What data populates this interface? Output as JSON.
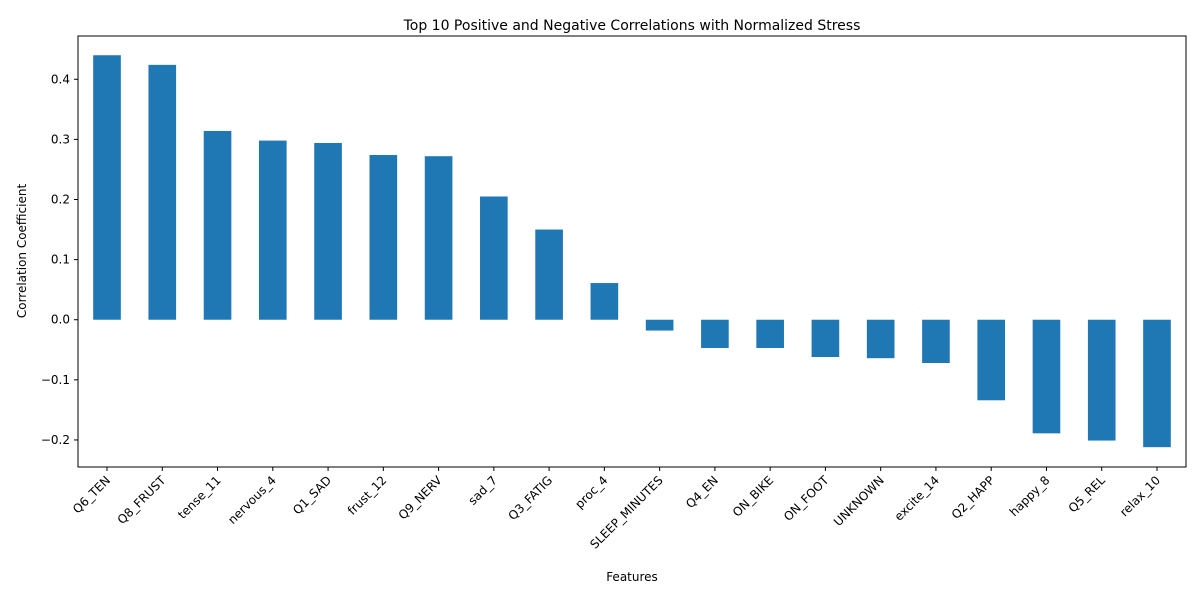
{
  "chart_data": {
    "type": "bar",
    "title": "Top 10 Positive and Negative Correlations with Normalized Stress",
    "xlabel": "Features",
    "ylabel": "Correlation Coefficient",
    "categories": [
      "Q6_TEN",
      "Q8_FRUST",
      "tense_11",
      "nervous_4",
      "Q1_SAD",
      "frust_12",
      "Q9_NERV",
      "sad_7",
      "Q3_FATIG",
      "proc_4",
      "SLEEP_MINUTES",
      "Q4_EN",
      "ON_BIKE",
      "ON_FOOT",
      "UNKNOWN",
      "excite_14",
      "Q2_HAPP",
      "happy_8",
      "Q5_REL",
      "relax_10"
    ],
    "values": [
      0.44,
      0.424,
      0.314,
      0.298,
      0.294,
      0.274,
      0.272,
      0.205,
      0.15,
      0.061,
      -0.018,
      -0.047,
      -0.047,
      -0.062,
      -0.064,
      -0.072,
      -0.134,
      -0.189,
      -0.201,
      -0.212
    ],
    "ylim": [
      -0.245,
      0.472
    ],
    "yticks": [
      -0.2,
      -0.1,
      0.0,
      0.1,
      0.2,
      0.3,
      0.4
    ],
    "ytick_labels": [
      "−0.2",
      "−0.1",
      "0.0",
      "0.1",
      "0.2",
      "0.3",
      "0.4"
    ],
    "grid": false,
    "legend": "none",
    "bar_color": "#1f77b4"
  }
}
